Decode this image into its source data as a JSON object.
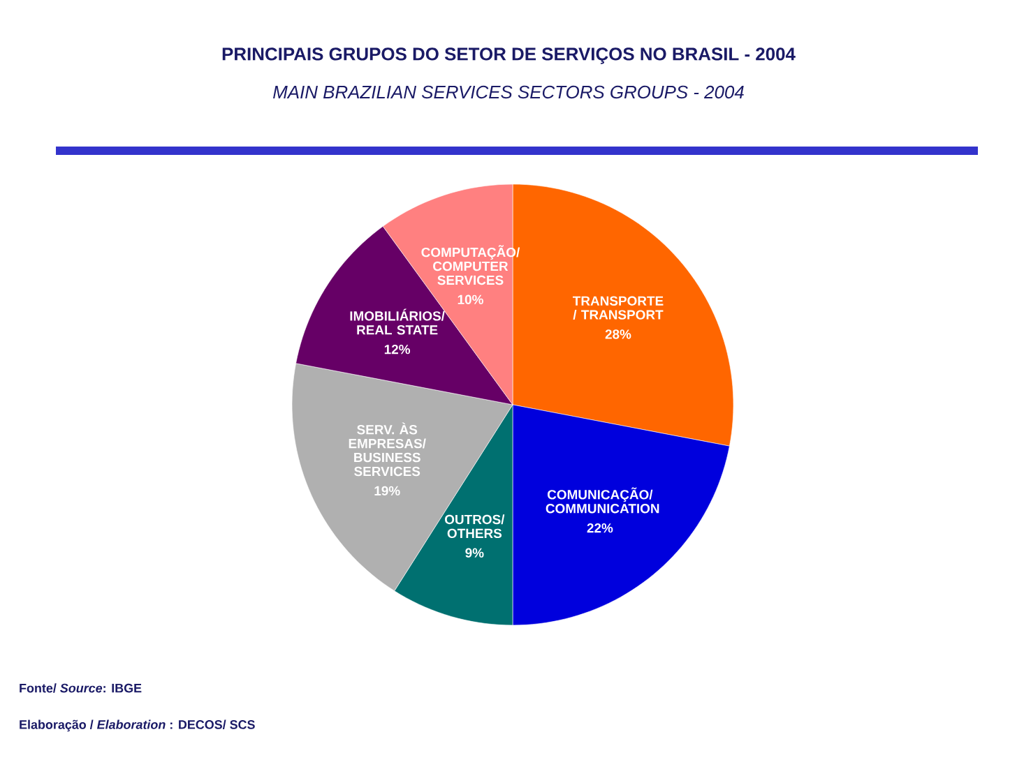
{
  "chart_data": {
    "type": "pie",
    "title": "PRINCIPAIS GRUPOS DO SETOR DE SERVIÇOS NO BRASIL - 2004",
    "subtitle": "MAIN BRAZILIAN SERVICES SECTORS GROUPS - 2004",
    "categories": [
      "TRANSPORTE / TRANSPORT",
      "COMUNICAÇÃO/ COMMUNICATION",
      "OUTROS/ OTHERS",
      "SERV. ÀS EMPRESAS/ BUSINESS SERVICES",
      "IMOBILIÁRIOS/ REAL STATE",
      "COMPUTAÇÃO/ COMPUTER SERVICES"
    ],
    "values": [
      28,
      22,
      9,
      19,
      12,
      10
    ],
    "colors": [
      "#ff6600",
      "#0000dd",
      "#007070",
      "#b0b0b0",
      "#660066",
      "#ff8080"
    ],
    "value_labels": [
      "28%",
      "22%",
      "9%",
      "19%",
      "12%",
      "10%"
    ],
    "annotations": [
      "Fonte/ *Source*: IBGE",
      "Elaboração / *Elaboration* : DECOS/ SCS"
    ]
  }
}
